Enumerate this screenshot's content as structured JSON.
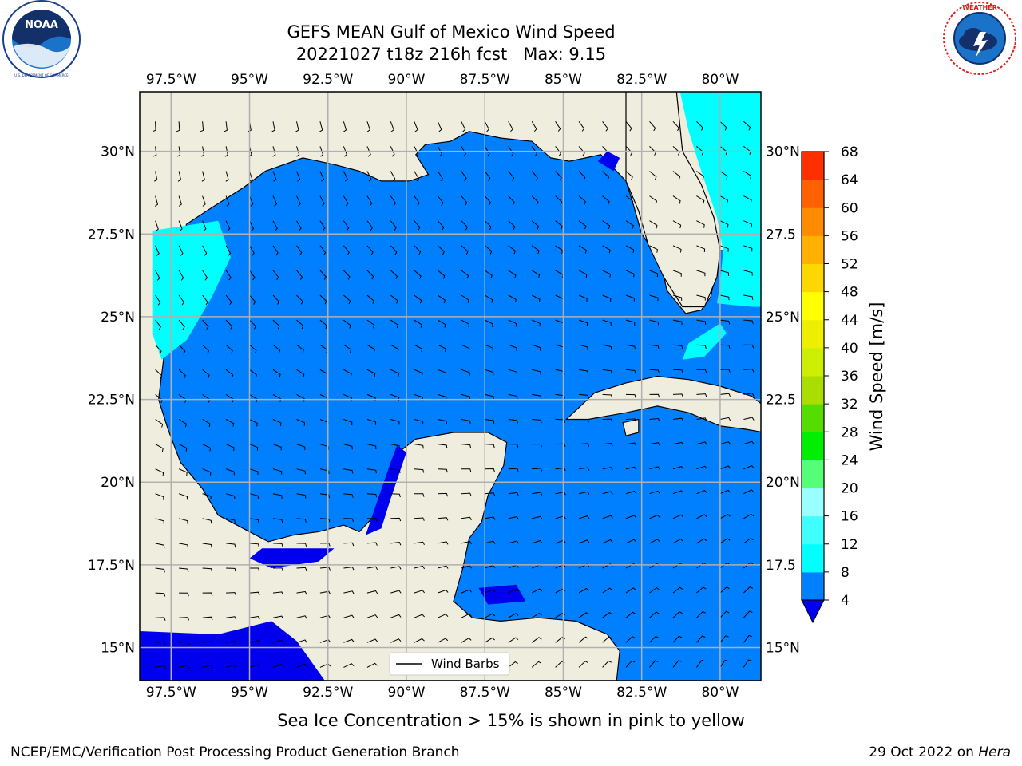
{
  "title": {
    "line1": "GEFS MEAN Gulf of Mexico Wind Speed",
    "line2": "20221027 t18z 216h fcst   Max: 9.15"
  },
  "logos": {
    "left": {
      "name": "noaa-logo",
      "text": "NOAA",
      "ring_text": "NATIONAL OCEANIC AND ATMOSPHERIC ADMINISTRATION · U.S. DEPARTMENT OF COMMERCE"
    },
    "right": {
      "name": "nws-logo",
      "ring_text": "NATIONAL WEATHER SERVICE"
    }
  },
  "map": {
    "extent": {
      "lon": [
        -98.5,
        -78.7
      ],
      "lat": [
        14.0,
        31.8
      ]
    },
    "lon_ticks": [
      "97.5°W",
      "95°W",
      "92.5°W",
      "90°W",
      "87.5°W",
      "85°W",
      "82.5°W",
      "80°W"
    ],
    "lon_tick_values": [
      -97.5,
      -95,
      -92.5,
      -90,
      -87.5,
      -85,
      -82.5,
      -80
    ],
    "lat_ticks": [
      "15°N",
      "17.5°N",
      "20°N",
      "22.5°N",
      "25°N",
      "27.5°N",
      "30°N"
    ],
    "lat_tick_values": [
      15,
      17.5,
      20,
      22.5,
      25,
      27.5,
      30
    ],
    "lat_ticks_right": [
      "15°N",
      "17.5",
      "20°N",
      "22.5",
      "25°N",
      "27.5",
      "30°N"
    ],
    "colors": {
      "land": "#efedde",
      "ocean_4_8": "#0080ff",
      "ocean_8_12": "#00ffff",
      "ocean_below_4": "#0000ee",
      "grid": "#b0b0b0"
    },
    "legend_label": "Wind Barbs"
  },
  "colorbar": {
    "label": "Wind Speed [m/s]",
    "ticks": [
      "4",
      "8",
      "12",
      "16",
      "20",
      "24",
      "28",
      "32",
      "36",
      "40",
      "44",
      "48",
      "52",
      "56",
      "60",
      "64",
      "68"
    ],
    "colors": [
      "#0080ff",
      "#00ffff",
      "#40ffff",
      "#99ffff",
      "#55ff77",
      "#00ee00",
      "#55dd00",
      "#aadd00",
      "#ccee00",
      "#eeee00",
      "#ffff00",
      "#ffd700",
      "#ffb000",
      "#ff8c00",
      "#ff6000",
      "#ff3000",
      "#ff0000"
    ],
    "under_color": "#0000ee"
  },
  "footer": {
    "note": "Sea Ice Concentration > 15% is shown in pink to yellow",
    "left": "NCEP/EMC/Verification Post Processing Product Generation Branch",
    "right_date": "29 Oct 2022 on ",
    "right_host": "Hera"
  }
}
